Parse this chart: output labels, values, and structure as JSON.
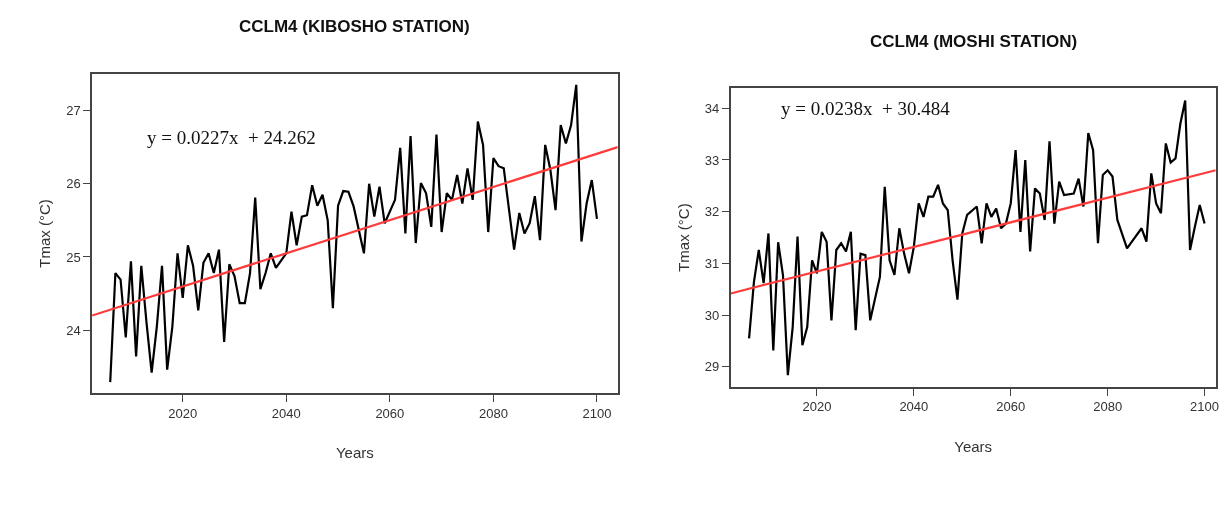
{
  "chart_data": [
    {
      "type": "line",
      "title": "CCLM4 (KIBOSHO STATION)",
      "xlabel": "Years",
      "ylabel": "Tmax (°C)",
      "annotations": [
        "y = 0.0227x  + 24.262"
      ],
      "xlim": [
        2002.5,
        2104
      ],
      "xticks": [
        2020,
        2040,
        2060,
        2080,
        2100
      ],
      "ylim": [
        23.14,
        27.5
      ],
      "yticks": [
        24,
        25,
        26,
        27
      ],
      "marker": "none",
      "line_style": "solid",
      "series": [
        {
          "color": "#000000",
          "x": [
            2006,
            2007,
            2008,
            2009,
            2010,
            2011,
            2012,
            2013,
            2014,
            2015,
            2016,
            2017,
            2018,
            2019,
            2020,
            2021,
            2022,
            2023,
            2024,
            2025,
            2026,
            2027,
            2028,
            2029,
            2030,
            2031,
            2032,
            2033,
            2034,
            2035,
            2036,
            2037,
            2038,
            2040,
            2041,
            2042,
            2043,
            2044,
            2045,
            2046,
            2047,
            2048,
            2049,
            2050,
            2051,
            2052,
            2053,
            2055,
            2056,
            2057,
            2058,
            2059,
            2061,
            2062,
            2063,
            2064,
            2065,
            2066,
            2067,
            2068,
            2069,
            2070,
            2071,
            2072,
            2073,
            2074,
            2075,
            2076,
            2077,
            2078,
            2079,
            2080,
            2081,
            2082,
            2084,
            2085,
            2086,
            2087,
            2088,
            2089,
            2090,
            2091,
            2092,
            2093,
            2094,
            2095,
            2096,
            2097,
            2098,
            2099,
            2100
          ],
          "values": [
            23.29,
            24.78,
            24.69,
            23.9,
            24.94,
            23.64,
            24.88,
            24.11,
            23.42,
            24.05,
            24.88,
            23.46,
            24.05,
            25.05,
            24.44,
            25.16,
            24.88,
            24.27,
            24.92,
            25.05,
            24.78,
            25.1,
            23.84,
            24.9,
            24.74,
            24.37,
            24.37,
            24.78,
            25.81,
            24.56,
            24.78,
            25.05,
            24.85,
            25.05,
            25.62,
            25.16,
            25.55,
            25.57,
            25.98,
            25.7,
            25.85,
            25.5,
            24.3,
            25.7,
            25.9,
            25.89,
            25.69,
            25.05,
            26.0,
            25.55,
            25.96,
            25.46,
            25.78,
            26.49,
            25.32,
            26.65,
            25.19,
            26.01,
            25.87,
            25.41,
            26.67,
            25.34,
            25.87,
            25.78,
            26.12,
            25.73,
            26.21,
            25.78,
            26.85,
            26.53,
            25.34,
            26.35,
            26.24,
            26.21,
            25.1,
            25.6,
            25.32,
            25.46,
            25.83,
            25.23,
            26.53,
            26.19,
            25.64,
            26.8,
            26.55,
            26.8,
            27.35,
            25.21,
            25.73,
            26.05,
            25.52
          ]
        },
        {
          "color": "#ff3b3b",
          "x": [
            2002.5,
            2104
          ],
          "values": [
            24.2,
            26.5
          ]
        }
      ]
    },
    {
      "type": "line",
      "title": "CCLM4 (MOSHI STATION)",
      "xlabel": "Years",
      "ylabel": "Tmax (°C)",
      "annotations": [
        "y = 0.0238x  + 30.484"
      ],
      "xlim": [
        2002.2,
        2102.3
      ],
      "xticks": [
        2020,
        2040,
        2060,
        2080,
        2100
      ],
      "ylim": [
        28.61,
        34.39
      ],
      "yticks": [
        29,
        30,
        31,
        32,
        33,
        34
      ],
      "marker": "none",
      "line_style": "solid",
      "series": [
        {
          "color": "#000000",
          "x": [
            2006,
            2007,
            2008,
            2009,
            2010,
            2011,
            2012,
            2013,
            2014,
            2015,
            2016,
            2017,
            2018,
            2019,
            2020,
            2021,
            2022,
            2023,
            2024,
            2025,
            2026,
            2027,
            2028,
            2029,
            2030,
            2031,
            2033,
            2034,
            2035,
            2036,
            2037,
            2038,
            2039,
            2040,
            2041,
            2042,
            2043,
            2044,
            2045,
            2046,
            2047,
            2048,
            2049,
            2050,
            2051,
            2053,
            2054,
            2055,
            2056,
            2057,
            2058,
            2059,
            2060,
            2061,
            2062,
            2063,
            2064,
            2065,
            2066,
            2067,
            2068,
            2069,
            2070,
            2071,
            2073,
            2074,
            2075,
            2076,
            2077,
            2078,
            2079,
            2080,
            2081,
            2082,
            2084,
            2085,
            2087,
            2088,
            2089,
            2090,
            2091,
            2092,
            2093,
            2094,
            2095,
            2096,
            2097,
            2098,
            2099,
            2100
          ],
          "values": [
            29.55,
            30.64,
            31.26,
            30.62,
            31.58,
            29.32,
            31.41,
            30.77,
            28.84,
            29.77,
            31.52,
            29.42,
            29.77,
            31.06,
            30.81,
            31.61,
            31.42,
            29.9,
            31.26,
            31.39,
            31.23,
            31.61,
            29.71,
            31.19,
            31.16,
            29.9,
            30.74,
            32.48,
            31.06,
            30.78,
            31.68,
            31.19,
            30.81,
            31.32,
            32.16,
            31.9,
            32.29,
            32.29,
            32.52,
            32.16,
            32.03,
            31.06,
            30.3,
            31.58,
            31.94,
            32.1,
            31.39,
            32.16,
            31.9,
            32.06,
            31.68,
            31.77,
            32.16,
            33.19,
            31.61,
            33.0,
            31.23,
            32.45,
            32.35,
            31.84,
            33.36,
            31.77,
            32.58,
            32.32,
            32.35,
            32.64,
            32.1,
            33.52,
            33.19,
            31.39,
            32.71,
            32.8,
            32.68,
            31.84,
            31.29,
            31.42,
            31.68,
            31.42,
            32.74,
            32.16,
            31.97,
            33.32,
            32.95,
            33.03,
            33.7,
            34.15,
            31.26,
            31.71,
            32.13,
            31.77
          ]
        },
        {
          "color": "#ff3b3b",
          "x": [
            2002.2,
            2102.3
          ],
          "values": [
            30.42,
            32.8
          ]
        }
      ]
    }
  ]
}
